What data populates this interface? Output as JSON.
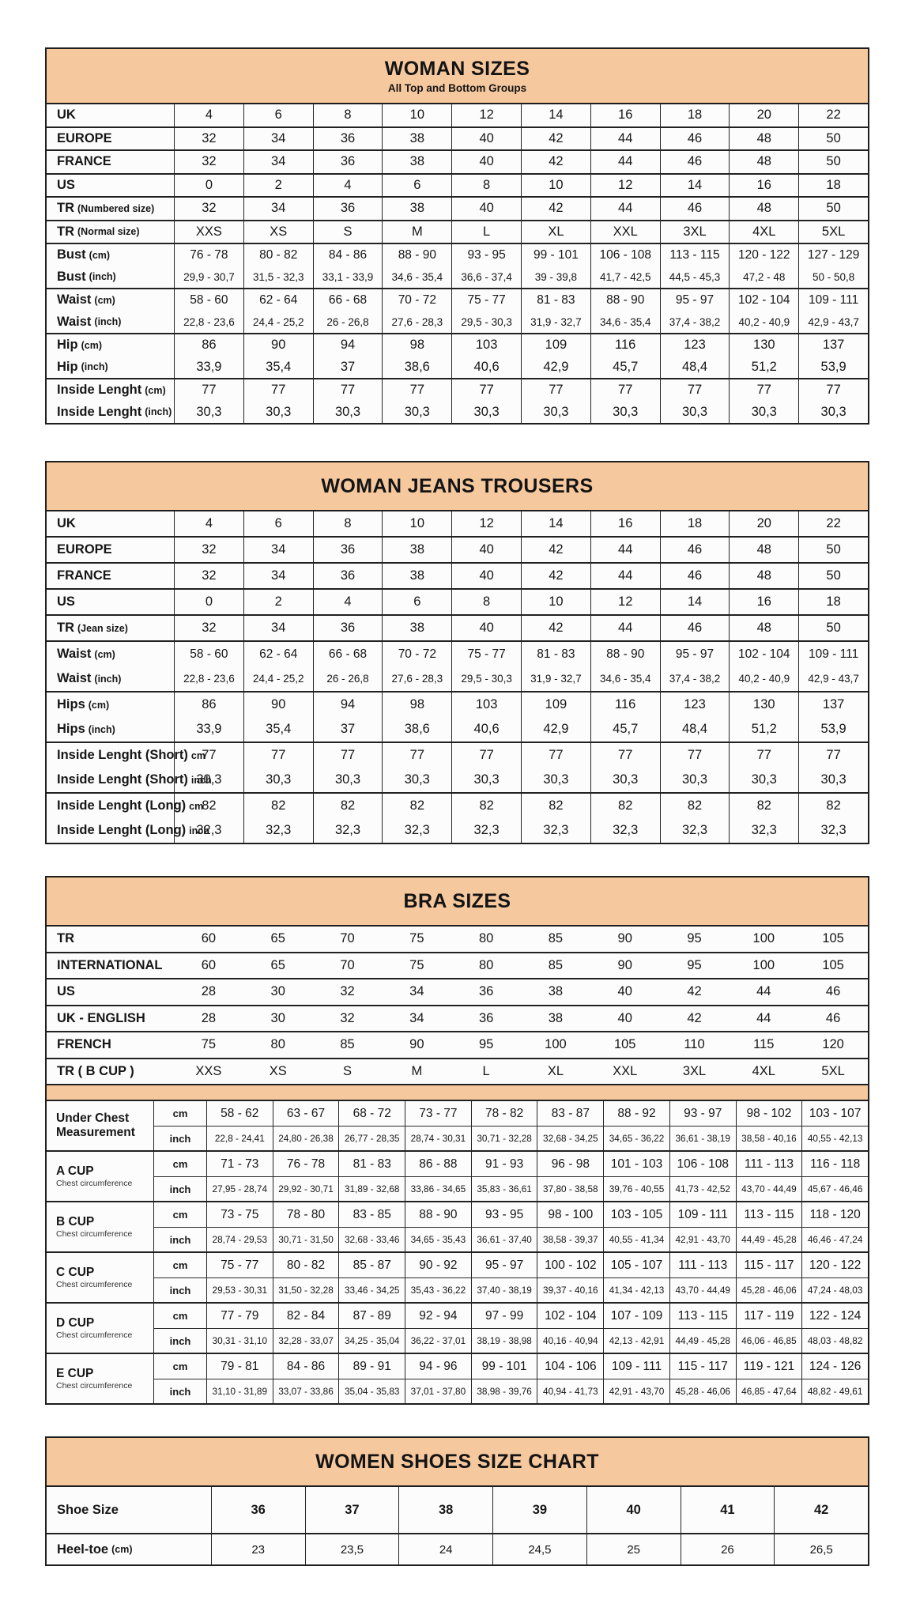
{
  "colors": {
    "band": "#f6c89e",
    "border": "#1e1e1e",
    "cell_background": "#fcfcfc"
  },
  "woman_sizes": {
    "title": "WOMAN SIZES",
    "subtitle": "All Top and Bottom Groups",
    "groups": [
      [
        {
          "label": "UK",
          "note": "",
          "values": [
            "4",
            "6",
            "8",
            "10",
            "12",
            "14",
            "16",
            "18",
            "20",
            "22"
          ]
        }
      ],
      [
        {
          "label": "EUROPE",
          "note": "",
          "values": [
            "32",
            "34",
            "36",
            "38",
            "40",
            "42",
            "44",
            "46",
            "48",
            "50"
          ]
        }
      ],
      [
        {
          "label": "FRANCE",
          "note": "",
          "values": [
            "32",
            "34",
            "36",
            "38",
            "40",
            "42",
            "44",
            "46",
            "48",
            "50"
          ]
        }
      ],
      [
        {
          "label": "US",
          "note": "",
          "values": [
            "0",
            "2",
            "4",
            "6",
            "8",
            "10",
            "12",
            "14",
            "16",
            "18"
          ]
        }
      ],
      [
        {
          "label": "TR",
          "note": "(Numbered size)",
          "values": [
            "32",
            "34",
            "36",
            "38",
            "40",
            "42",
            "44",
            "46",
            "48",
            "50"
          ]
        }
      ],
      [
        {
          "label": "TR",
          "note": "(Normal size)",
          "values": [
            "XXS",
            "XS",
            "S",
            "M",
            "L",
            "XL",
            "XXL",
            "3XL",
            "4XL",
            "5XL"
          ]
        }
      ],
      [
        {
          "label": "Bust",
          "note": "(cm)",
          "values": [
            "76 - 78",
            "80 - 82",
            "84 - 86",
            "88 - 90",
            "93 - 95",
            "99 - 101",
            "106 - 108",
            "113 - 115",
            "120 - 122",
            "127 - 129"
          ]
        },
        {
          "label": "Bust",
          "note": "(inch)",
          "values": [
            "29,9 - 30,7",
            "31,5 - 32,3",
            "33,1 - 33,9",
            "34,6 - 35,4",
            "36,6 - 37,4",
            "39 - 39,8",
            "41,7 - 42,5",
            "44,5 - 45,3",
            "47,2 - 48",
            "50 - 50,8"
          ]
        }
      ],
      [
        {
          "label": "Waist",
          "note": "(cm)",
          "values": [
            "58 - 60",
            "62 - 64",
            "66 - 68",
            "70 - 72",
            "75 - 77",
            "81 - 83",
            "88 - 90",
            "95 - 97",
            "102 - 104",
            "109 - 111"
          ]
        },
        {
          "label": "Waist",
          "note": "(inch)",
          "values": [
            "22,8 - 23,6",
            "24,4 - 25,2",
            "26 - 26,8",
            "27,6 - 28,3",
            "29,5 - 30,3",
            "31,9 - 32,7",
            "34,6 - 35,4",
            "37,4 - 38,2",
            "40,2 - 40,9",
            "42,9 - 43,7"
          ]
        }
      ],
      [
        {
          "label": "Hip",
          "note": "(cm)",
          "values": [
            "86",
            "90",
            "94",
            "98",
            "103",
            "109",
            "116",
            "123",
            "130",
            "137"
          ]
        },
        {
          "label": "Hip",
          "note": "(inch)",
          "values": [
            "33,9",
            "35,4",
            "37",
            "38,6",
            "40,6",
            "42,9",
            "45,7",
            "48,4",
            "51,2",
            "53,9"
          ]
        }
      ],
      [
        {
          "label": "Inside Lenght",
          "note": "(cm)",
          "values": [
            "77",
            "77",
            "77",
            "77",
            "77",
            "77",
            "77",
            "77",
            "77",
            "77"
          ]
        },
        {
          "label": "Inside Lenght",
          "note": "(inch)",
          "values": [
            "30,3",
            "30,3",
            "30,3",
            "30,3",
            "30,3",
            "30,3",
            "30,3",
            "30,3",
            "30,3",
            "30,3"
          ]
        }
      ]
    ]
  },
  "jeans_trousers": {
    "title": "WOMAN JEANS TROUSERS",
    "groups": [
      [
        {
          "label": "UK",
          "note": "",
          "values": [
            "4",
            "6",
            "8",
            "10",
            "12",
            "14",
            "16",
            "18",
            "20",
            "22"
          ]
        }
      ],
      [
        {
          "label": "EUROPE",
          "note": "",
          "values": [
            "32",
            "34",
            "36",
            "38",
            "40",
            "42",
            "44",
            "46",
            "48",
            "50"
          ]
        }
      ],
      [
        {
          "label": "FRANCE",
          "note": "",
          "values": [
            "32",
            "34",
            "36",
            "38",
            "40",
            "42",
            "44",
            "46",
            "48",
            "50"
          ]
        }
      ],
      [
        {
          "label": "US",
          "note": "",
          "values": [
            "0",
            "2",
            "4",
            "6",
            "8",
            "10",
            "12",
            "14",
            "16",
            "18"
          ]
        }
      ],
      [
        {
          "label": "TR",
          "note": "(Jean size)",
          "values": [
            "32",
            "34",
            "36",
            "38",
            "40",
            "42",
            "44",
            "46",
            "48",
            "50"
          ]
        }
      ],
      [
        {
          "label": "Waist",
          "note": "(cm)",
          "values": [
            "58 - 60",
            "62 - 64",
            "66 - 68",
            "70 - 72",
            "75 - 77",
            "81 - 83",
            "88 - 90",
            "95 - 97",
            "102 - 104",
            "109 - 111"
          ]
        },
        {
          "label": "Waist",
          "note": "(inch)",
          "values": [
            "22,8 - 23,6",
            "24,4 - 25,2",
            "26 - 26,8",
            "27,6 - 28,3",
            "29,5 - 30,3",
            "31,9 - 32,7",
            "34,6 - 35,4",
            "37,4 - 38,2",
            "40,2 - 40,9",
            "42,9 - 43,7"
          ]
        }
      ],
      [
        {
          "label": "Hips",
          "note": "(cm)",
          "values": [
            "86",
            "90",
            "94",
            "98",
            "103",
            "109",
            "116",
            "123",
            "130",
            "137"
          ]
        },
        {
          "label": "Hips",
          "note": "(inch)",
          "values": [
            "33,9",
            "35,4",
            "37",
            "38,6",
            "40,6",
            "42,9",
            "45,7",
            "48,4",
            "51,2",
            "53,9"
          ]
        }
      ],
      [
        {
          "label": "Inside Lenght (Short)",
          "note": "cm",
          "values": [
            "77",
            "77",
            "77",
            "77",
            "77",
            "77",
            "77",
            "77",
            "77",
            "77"
          ]
        },
        {
          "label": "Inside Lenght (Short)",
          "note": "inch",
          "values": [
            "30,3",
            "30,3",
            "30,3",
            "30,3",
            "30,3",
            "30,3",
            "30,3",
            "30,3",
            "30,3",
            "30,3"
          ]
        }
      ],
      [
        {
          "label": "Inside Lenght (Long)",
          "note": "cm",
          "values": [
            "82",
            "82",
            "82",
            "82",
            "82",
            "82",
            "82",
            "82",
            "82",
            "82"
          ]
        },
        {
          "label": "Inside Lenght (Long)",
          "note": "inch",
          "values": [
            "32,3",
            "32,3",
            "32,3",
            "32,3",
            "32,3",
            "32,3",
            "32,3",
            "32,3",
            "32,3",
            "32,3"
          ]
        }
      ]
    ]
  },
  "bra_sizes": {
    "title": "BRA SIZES",
    "simple_groups": [
      [
        {
          "label": "TR",
          "note": "",
          "values": [
            "60",
            "65",
            "70",
            "75",
            "80",
            "85",
            "90",
            "95",
            "100",
            "105"
          ]
        }
      ],
      [
        {
          "label": "INTERNATIONAL",
          "note": "",
          "values": [
            "60",
            "65",
            "70",
            "75",
            "80",
            "85",
            "90",
            "95",
            "100",
            "105"
          ]
        }
      ],
      [
        {
          "label": "US",
          "note": "",
          "values": [
            "28",
            "30",
            "32",
            "34",
            "36",
            "38",
            "40",
            "42",
            "44",
            "46"
          ]
        }
      ],
      [
        {
          "label": "UK - ENGLISH",
          "note": "",
          "values": [
            "28",
            "30",
            "32",
            "34",
            "36",
            "38",
            "40",
            "42",
            "44",
            "46"
          ]
        }
      ],
      [
        {
          "label": "FRENCH",
          "note": "",
          "values": [
            "75",
            "80",
            "85",
            "90",
            "95",
            "100",
            "105",
            "110",
            "115",
            "120"
          ]
        }
      ],
      [
        {
          "label": "TR ( B CUP )",
          "note": "",
          "values": [
            "XXS",
            "XS",
            "S",
            "M",
            "L",
            "XL",
            "XXL",
            "3XL",
            "4XL",
            "5XL"
          ]
        }
      ]
    ],
    "unit_labels": {
      "cm": "cm",
      "inch": "inch"
    },
    "cup_groups": [
      {
        "label": "Under Chest Measurement",
        "sublabel": "",
        "cm": [
          "58 - 62",
          "63 - 67",
          "68 - 72",
          "73 - 77",
          "78 - 82",
          "83 - 87",
          "88 - 92",
          "93 - 97",
          "98 - 102",
          "103 - 107"
        ],
        "inch": [
          "22,8 - 24,41",
          "24,80 - 26,38",
          "26,77 - 28,35",
          "28,74 - 30,31",
          "30,71 - 32,28",
          "32,68 - 34,25",
          "34,65 - 36,22",
          "36,61 - 38,19",
          "38,58 - 40,16",
          "40,55 - 42,13"
        ]
      },
      {
        "label": "A CUP",
        "sublabel": "Chest circumference",
        "cm": [
          "71 - 73",
          "76 - 78",
          "81 - 83",
          "86 - 88",
          "91 - 93",
          "96 - 98",
          "101 - 103",
          "106 - 108",
          "111 - 113",
          "116 - 118"
        ],
        "inch": [
          "27,95 - 28,74",
          "29,92 - 30,71",
          "31,89 - 32,68",
          "33,86 - 34,65",
          "35,83 - 36,61",
          "37,80 - 38,58",
          "39,76 - 40,55",
          "41,73 - 42,52",
          "43,70 - 44,49",
          "45,67 - 46,46"
        ]
      },
      {
        "label": "B CUP",
        "sublabel": "Chest circumference",
        "cm": [
          "73 - 75",
          "78 - 80",
          "83 - 85",
          "88 - 90",
          "93 - 95",
          "98 - 100",
          "103 - 105",
          "109 - 111",
          "113 - 115",
          "118 - 120"
        ],
        "inch": [
          "28,74 - 29,53",
          "30,71 - 31,50",
          "32,68 - 33,46",
          "34,65 - 35,43",
          "36,61 - 37,40",
          "38,58 - 39,37",
          "40,55 - 41,34",
          "42,91 - 43,70",
          "44,49 - 45,28",
          "46,46 - 47,24"
        ]
      },
      {
        "label": "C CUP",
        "sublabel": "Chest circumference",
        "cm": [
          "75 - 77",
          "80 - 82",
          "85 - 87",
          "90 - 92",
          "95 - 97",
          "100 - 102",
          "105 - 107",
          "111 - 113",
          "115 - 117",
          "120 - 122"
        ],
        "inch": [
          "29,53 - 30,31",
          "31,50 - 32,28",
          "33,46 - 34,25",
          "35,43 - 36,22",
          "37,40 - 38,19",
          "39,37 - 40,16",
          "41,34 - 42,13",
          "43,70 - 44,49",
          "45,28 - 46,06",
          "47,24 - 48,03"
        ]
      },
      {
        "label": "D CUP",
        "sublabel": "Chest circumference",
        "cm": [
          "77 - 79",
          "82 - 84",
          "87 - 89",
          "92 - 94",
          "97 - 99",
          "102 - 104",
          "107 - 109",
          "113 - 115",
          "117 - 119",
          "122 - 124"
        ],
        "inch": [
          "30,31 - 31,10",
          "32,28 - 33,07",
          "34,25 - 35,04",
          "36,22 - 37,01",
          "38,19 - 38,98",
          "40,16 - 40,94",
          "42,13 - 42,91",
          "44,49 - 45,28",
          "46,06 - 46,85",
          "48,03 - 48,82"
        ]
      },
      {
        "label": "E CUP",
        "sublabel": "Chest circumference",
        "cm": [
          "79 - 81",
          "84 - 86",
          "89 - 91",
          "94 - 96",
          "99 - 101",
          "104 - 106",
          "109 - 111",
          "115 - 117",
          "119 - 121",
          "124 - 126"
        ],
        "inch": [
          "31,10 - 31,89",
          "33,07 - 33,86",
          "35,04 - 35,83",
          "37,01 - 37,80",
          "38,98 - 39,76",
          "40,94 - 41,73",
          "42,91 - 43,70",
          "45,28 - 46,06",
          "46,85 - 47,64",
          "48,82 - 49,61"
        ]
      }
    ]
  },
  "shoes": {
    "title": "WOMEN SHOES SIZE CHART",
    "rows": [
      {
        "label": "Shoe Size",
        "note": "",
        "values": [
          "36",
          "37",
          "38",
          "39",
          "40",
          "41",
          "42"
        ],
        "bold": true
      },
      {
        "label": "Heel-toe",
        "note": "(cm)",
        "values": [
          "23",
          "23,5",
          "24",
          "24,5",
          "25",
          "26",
          "26,5"
        ],
        "bold": false
      }
    ]
  }
}
